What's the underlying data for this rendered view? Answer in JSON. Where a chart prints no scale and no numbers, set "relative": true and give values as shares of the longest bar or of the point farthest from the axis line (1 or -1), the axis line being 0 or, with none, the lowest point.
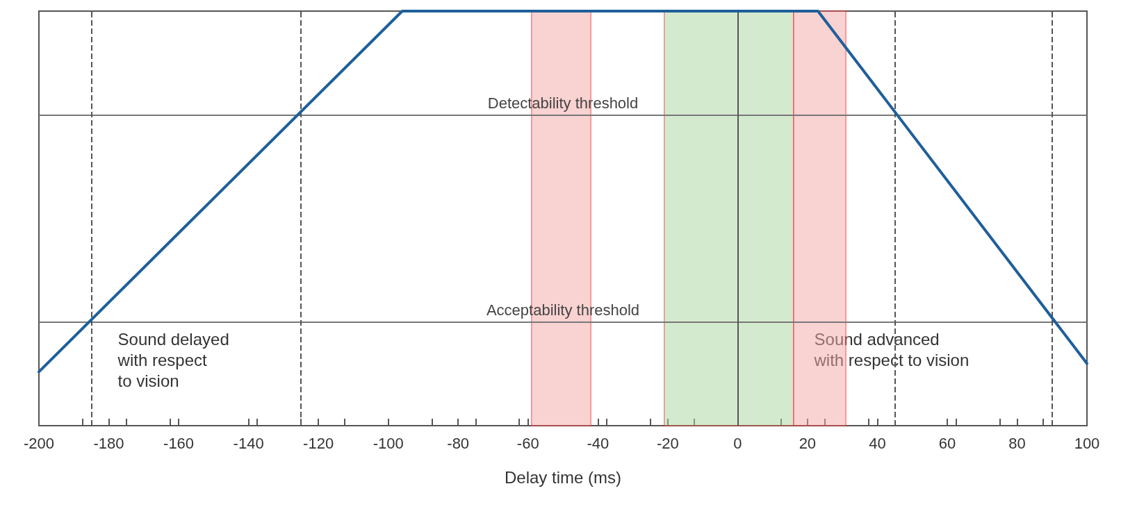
{
  "chart_data": {
    "type": "line",
    "xlabel": "Delay time (ms)",
    "relative": true,
    "marker": "none",
    "line_style": "solid",
    "xlim": [
      -200,
      100
    ],
    "xticks": [
      -200,
      -180,
      -160,
      -140,
      -120,
      -100,
      -80,
      -60,
      -40,
      -20,
      0,
      20,
      40,
      60,
      80,
      100
    ],
    "series": [
      {
        "color": "#1f5f9a",
        "x": [
          -200,
          -96,
          23,
          100
        ],
        "values": [
          0.13,
          1,
          1,
          0.15
        ]
      }
    ],
    "ref_lines": [
      {
        "axis": "y",
        "value": 0.75,
        "label": "Detectability threshold",
        "color": "#777777",
        "line_style": "solid"
      },
      {
        "axis": "y",
        "value": 0.25,
        "label": "Acceptability threshold",
        "color": "#777777",
        "line_style": "solid"
      },
      {
        "axis": "x",
        "value": -185,
        "label": null,
        "color": "#555555",
        "line_style": "dashed"
      },
      {
        "axis": "x",
        "value": -125,
        "label": null,
        "color": "#555555",
        "line_style": "dashed"
      },
      {
        "axis": "x",
        "value": 0,
        "label": null,
        "color": "#555555",
        "line_style": "solid"
      },
      {
        "axis": "x",
        "value": 45,
        "label": null,
        "color": "#555555",
        "line_style": "dashed"
      },
      {
        "axis": "x",
        "value": 90,
        "label": null,
        "color": "#555555",
        "line_style": "dashed"
      }
    ],
    "bands": [
      {
        "axis": "x",
        "from": -59,
        "to": -42,
        "label": null,
        "color": "#f4a6a6"
      },
      {
        "axis": "x",
        "from": -21,
        "to": 16,
        "label": null,
        "color": "#a9d6a0"
      },
      {
        "axis": "x",
        "from": 16,
        "to": 31,
        "label": null,
        "color": "#f4a6a6"
      }
    ],
    "annotations": [
      "Sound delayed\nwith respect\nto vision",
      "Sound advanced\nwith respect to vision"
    ]
  }
}
